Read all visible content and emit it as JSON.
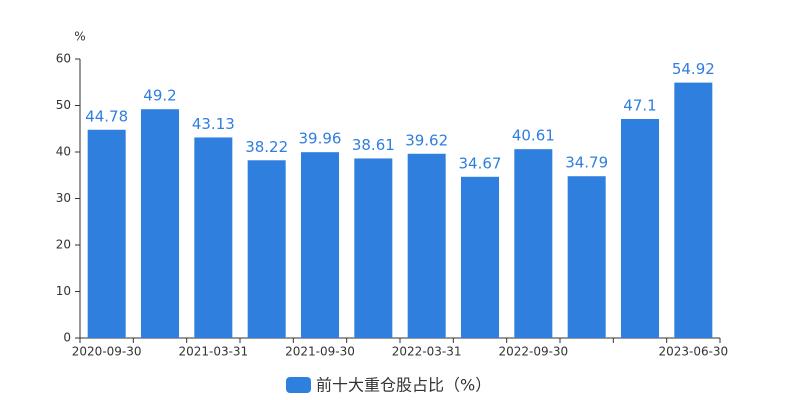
{
  "chart_data": {
    "type": "bar",
    "y_unit": "%",
    "categories": [
      "2020-09-30",
      null,
      "2021-03-31",
      null,
      "2021-09-30",
      null,
      "2022-03-31",
      null,
      "2022-09-30",
      null,
      null,
      "2023-06-30"
    ],
    "series": [
      {
        "name": "前十大重仓股占比（%）",
        "color": "#2f7fdf",
        "values": [
          44.78,
          49.2,
          43.13,
          38.22,
          39.96,
          38.61,
          39.62,
          34.67,
          40.61,
          34.79,
          47.1,
          54.92
        ]
      }
    ],
    "ylim": [
      0,
      60
    ],
    "yticks": [
      0,
      10,
      20,
      30,
      40,
      50,
      60
    ],
    "grid": false,
    "legend": "bottom"
  }
}
